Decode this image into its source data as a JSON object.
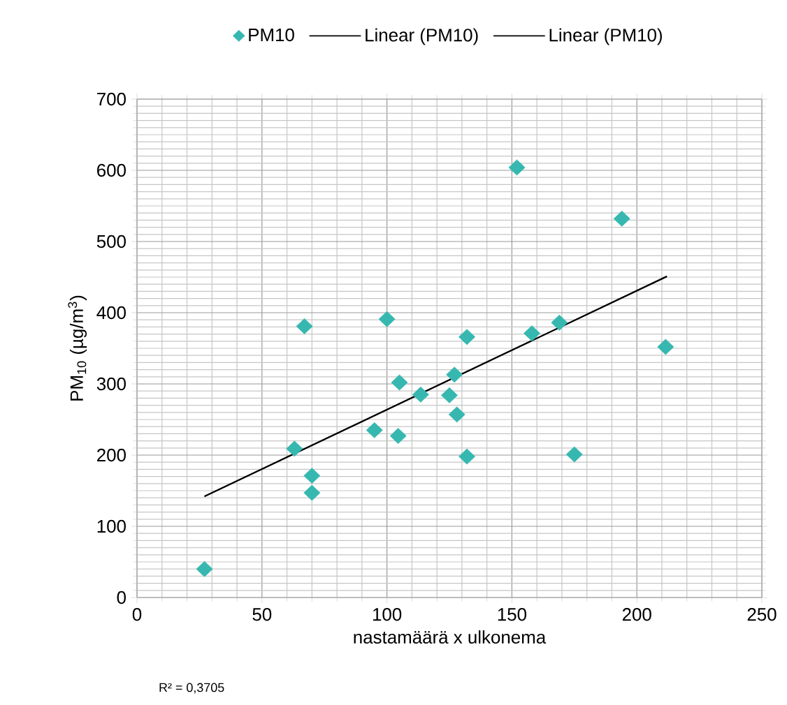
{
  "chart_data": {
    "type": "scatter",
    "xlabel": "nastamäärä x ulkonema",
    "ylabel": "PM$_{10}$ (µg/m$^{3}$)",
    "xlim": [
      0,
      250
    ],
    "xticks": [
      0,
      50,
      100,
      150,
      200,
      250
    ],
    "ylim": [
      0,
      700
    ],
    "yticks": [
      0,
      100,
      200,
      300,
      400,
      500,
      600,
      700
    ],
    "grid": true,
    "legend": "top",
    "annotations": [
      "R² = 0,3705"
    ],
    "series": [
      {
        "name": "PM10",
        "color": "#36b8b0",
        "marker": "diamond",
        "x": [
          27,
          67,
          100,
          152,
          194,
          211.5,
          132,
          158,
          169,
          105,
          113.5,
          127,
          125,
          128,
          95,
          104.5,
          63,
          70,
          70,
          132,
          175
        ],
        "values": [
          40,
          381,
          391,
          604,
          532,
          352,
          366,
          371,
          386,
          302,
          285,
          313,
          284,
          257,
          235,
          227,
          209,
          171,
          147,
          198,
          201
        ]
      },
      {
        "type": "line",
        "name": "Linear (PM10)",
        "color": "#000000",
        "x": [
          27,
          212
        ],
        "values": [
          142,
          451
        ]
      },
      {
        "type": "line",
        "name": "Linear (PM10)",
        "color": "#000000",
        "x": [
          27,
          212
        ],
        "values": [
          142,
          451
        ]
      }
    ]
  }
}
